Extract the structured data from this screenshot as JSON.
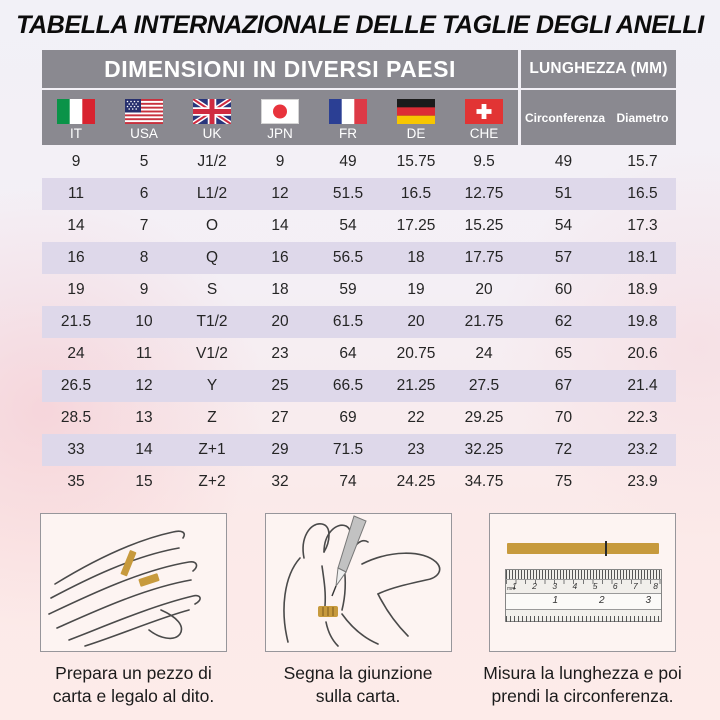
{
  "title": "TABELLA INTERNAZIONALE DELLE TAGLIE DEGLI ANELLI",
  "header": {
    "dimensions_title": "DIMENSIONI IN DIVERSI PAESI",
    "length_title": "LUNGHEZZA (MM)",
    "countries": [
      {
        "code": "IT",
        "flag": "italy-flag-icon"
      },
      {
        "code": "USA",
        "flag": "usa-flag-icon"
      },
      {
        "code": "UK",
        "flag": "uk-flag-icon"
      },
      {
        "code": "JPN",
        "flag": "japan-flag-icon"
      },
      {
        "code": "FR",
        "flag": "france-flag-icon"
      },
      {
        "code": "DE",
        "flag": "germany-flag-icon"
      },
      {
        "code": "CHE",
        "flag": "switzerland-flag-icon"
      }
    ],
    "length_columns": {
      "circumference": "Circonferenza",
      "diameter": "Diametro"
    }
  },
  "table": {
    "columns": [
      "IT",
      "USA",
      "UK",
      "JPN",
      "FR",
      "DE",
      "CHE",
      "Circonferenza",
      "Diametro"
    ],
    "rows": [
      [
        "9",
        "5",
        "J1/2",
        "9",
        "49",
        "15.75",
        "9.5",
        "49",
        "15.7"
      ],
      [
        "11",
        "6",
        "L1/2",
        "12",
        "51.5",
        "16.5",
        "12.75",
        "51",
        "16.5"
      ],
      [
        "14",
        "7",
        "O",
        "14",
        "54",
        "17.25",
        "15.25",
        "54",
        "17.3"
      ],
      [
        "16",
        "8",
        "Q",
        "16",
        "56.5",
        "18",
        "17.75",
        "57",
        "18.1"
      ],
      [
        "19",
        "9",
        "S",
        "18",
        "59",
        "19",
        "20",
        "60",
        "18.9"
      ],
      [
        "21.5",
        "10",
        "T1/2",
        "20",
        "61.5",
        "20",
        "21.75",
        "62",
        "19.8"
      ],
      [
        "24",
        "11",
        "V1/2",
        "23",
        "64",
        "20.75",
        "24",
        "65",
        "20.6"
      ],
      [
        "26.5",
        "12",
        "Y",
        "25",
        "66.5",
        "21.25",
        "27.5",
        "67",
        "21.4"
      ],
      [
        "28.5",
        "13",
        "Z",
        "27",
        "69",
        "22",
        "29.25",
        "70",
        "22.3"
      ],
      [
        "33",
        "14",
        "Z+1",
        "29",
        "71.5",
        "23",
        "32.25",
        "72",
        "23.2"
      ],
      [
        "35",
        "15",
        "Z+2",
        "32",
        "74",
        "24.25",
        "34.75",
        "75",
        "23.9"
      ]
    ]
  },
  "steps": [
    {
      "illustration": "hand-with-paper-strip",
      "caption_line1": "Prepara un pezzo di",
      "caption_line2": "carta e legalo al dito."
    },
    {
      "illustration": "mark-junction-with-pen",
      "caption_line1": "Segna la giunzione",
      "caption_line2": "sulla carta."
    },
    {
      "illustration": "paper-strip-and-ruler",
      "caption_line1": "Misura la lunghezza e poi",
      "caption_line2": "prendi la circonferenza.",
      "ruler": {
        "unit_label": "mm",
        "cm_numbers": [
          "1",
          "2",
          "3",
          "4",
          "5",
          "6",
          "7",
          "8"
        ],
        "inch_numbers": [
          "1",
          "2",
          "3"
        ]
      }
    }
  ],
  "colors": {
    "header_gray": "#8a8990",
    "row_stripe": "#ded8ea",
    "paper_strip_gold": "#c79a3d",
    "background_top": "#f2f1f7",
    "background_bottom": "#fdebe9"
  }
}
